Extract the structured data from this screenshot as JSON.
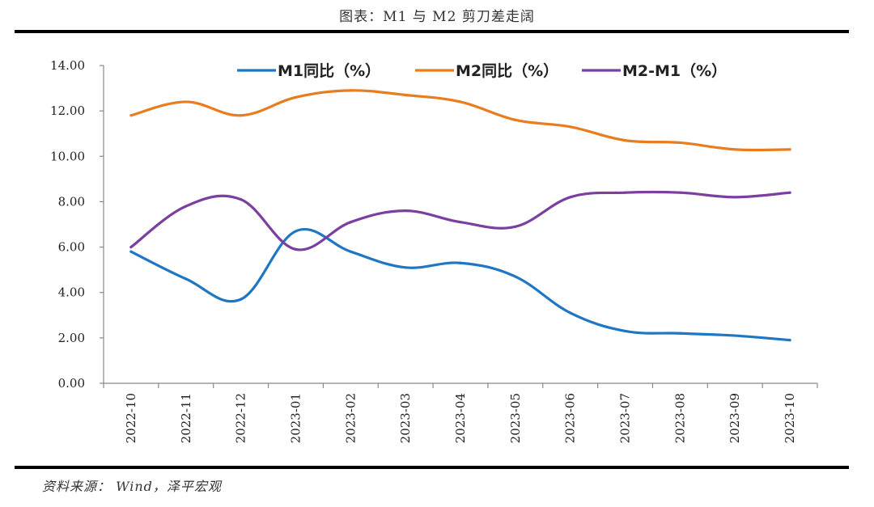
{
  "figure": {
    "title": "图表：M1 与 M2 剪刀差走阔",
    "source": "资料来源：   Wind，泽平宏观"
  },
  "chart_data": {
    "type": "line",
    "categories": [
      "2022-10",
      "2022-11",
      "2022-12",
      "2023-01",
      "2023-02",
      "2023-03",
      "2023-04",
      "2023-05",
      "2023-06",
      "2023-07",
      "2023-08",
      "2023-09",
      "2023-10"
    ],
    "ylim": [
      0,
      14
    ],
    "yticks": [
      "0.00",
      "2.00",
      "4.00",
      "6.00",
      "8.00",
      "10.00",
      "12.00",
      "14.00"
    ],
    "grid": false,
    "legend_position": "top",
    "series": [
      {
        "name": "M1同比（%）",
        "color": "#1f77c4",
        "values": [
          5.8,
          4.6,
          3.7,
          6.7,
          5.8,
          5.1,
          5.3,
          4.7,
          3.1,
          2.3,
          2.2,
          2.1,
          1.9
        ]
      },
      {
        "name": "M2同比（%）",
        "color": "#e87c1e",
        "values": [
          11.8,
          12.4,
          11.8,
          12.6,
          12.9,
          12.7,
          12.4,
          11.6,
          11.3,
          10.7,
          10.6,
          10.3,
          10.3
        ]
      },
      {
        "name": "M2-M1（%）",
        "color": "#7a3fa0",
        "values": [
          6.0,
          7.8,
          8.1,
          5.9,
          7.1,
          7.6,
          7.1,
          6.9,
          8.2,
          8.4,
          8.4,
          8.2,
          8.4
        ]
      }
    ]
  }
}
